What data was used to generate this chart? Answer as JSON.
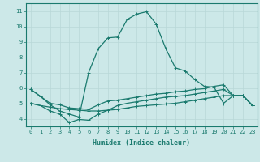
{
  "xlabel": "Humidex (Indice chaleur)",
  "bg_color": "#cce8e8",
  "line_color": "#1a7a6e",
  "grid_color": "#b8d8d8",
  "xlim": [
    -0.5,
    23.5
  ],
  "ylim": [
    3.5,
    11.5
  ],
  "xticks": [
    0,
    1,
    2,
    3,
    4,
    5,
    6,
    7,
    8,
    9,
    10,
    11,
    12,
    13,
    14,
    15,
    16,
    17,
    18,
    19,
    20,
    21,
    22,
    23
  ],
  "yticks": [
    4,
    5,
    6,
    7,
    8,
    9,
    10,
    11
  ],
  "line_main_x": [
    0,
    1,
    2,
    3,
    4,
    5,
    6,
    7,
    8,
    9,
    10,
    11,
    12,
    13,
    14,
    15,
    16,
    17,
    18,
    19,
    20,
    21,
    22,
    23
  ],
  "line_main_y": [
    5.9,
    5.45,
    4.9,
    4.5,
    4.3,
    4.1,
    7.0,
    8.55,
    9.25,
    9.3,
    10.45,
    10.8,
    10.95,
    10.15,
    8.55,
    7.3,
    7.1,
    6.55,
    6.1,
    6.05,
    5.0,
    5.5,
    5.5,
    4.85
  ],
  "line_upper_flat_x": [
    0,
    1,
    2,
    3,
    4,
    5,
    6,
    7,
    8,
    9,
    10,
    11,
    12,
    13,
    14,
    15,
    16,
    17,
    18,
    19,
    20,
    21,
    22,
    23
  ],
  "line_upper_flat_y": [
    5.9,
    5.45,
    5.0,
    4.9,
    4.7,
    4.65,
    4.6,
    4.9,
    5.15,
    5.2,
    5.3,
    5.4,
    5.5,
    5.6,
    5.65,
    5.75,
    5.8,
    5.9,
    5.95,
    6.1,
    6.2,
    5.5,
    5.5,
    4.85
  ],
  "line_mid_flat_x": [
    0,
    1,
    2,
    3,
    4,
    5,
    6,
    7,
    8,
    9,
    10,
    11,
    12,
    13,
    14,
    15,
    16,
    17,
    18,
    19,
    20,
    21,
    22,
    23
  ],
  "line_mid_flat_y": [
    5.0,
    4.85,
    4.75,
    4.65,
    4.6,
    4.55,
    4.5,
    4.5,
    4.55,
    4.6,
    4.7,
    4.8,
    4.85,
    4.9,
    4.95,
    5.0,
    5.1,
    5.2,
    5.3,
    5.4,
    5.5,
    5.5,
    5.5,
    4.85
  ],
  "line_lower_flat_x": [
    0,
    1,
    2,
    3,
    4,
    5,
    6,
    7,
    8,
    9,
    10,
    11,
    12,
    13,
    14,
    15,
    16,
    17,
    18,
    19,
    20,
    21,
    22,
    23
  ],
  "line_lower_flat_y": [
    5.0,
    4.85,
    4.5,
    4.3,
    3.75,
    3.95,
    3.9,
    4.3,
    4.55,
    4.85,
    5.0,
    5.1,
    5.2,
    5.3,
    5.4,
    5.45,
    5.5,
    5.6,
    5.7,
    5.8,
    5.9,
    5.5,
    5.5,
    4.85
  ]
}
